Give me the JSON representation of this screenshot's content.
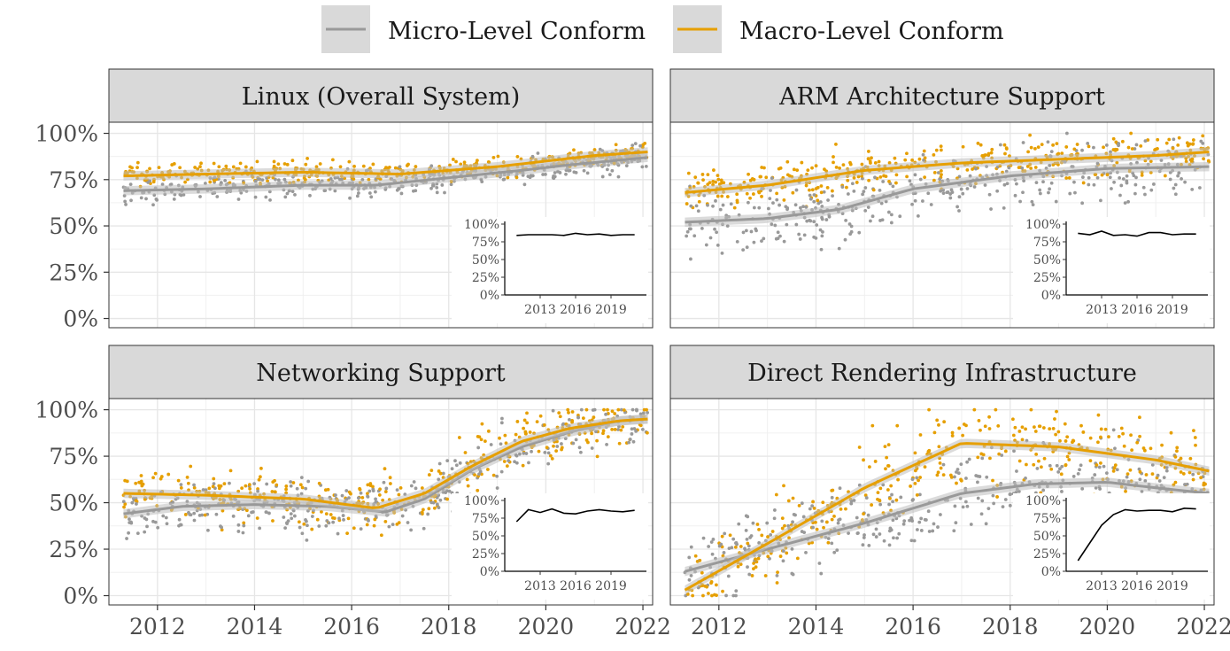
{
  "legend": {
    "position": "top",
    "items": [
      {
        "label": "Micro-Level Conform",
        "color": "#999999"
      },
      {
        "label": "Macro-Level Conform",
        "color": "#E69F00"
      }
    ]
  },
  "chart_data": {
    "type": "scatter",
    "ylim": [
      0,
      100
    ],
    "xlim": [
      2011,
      2022.2
    ],
    "y_ticks": [
      0,
      25,
      50,
      75,
      100
    ],
    "y_tick_labels": [
      "0%",
      "25%",
      "50%",
      "75%",
      "100%"
    ],
    "x_ticks": [
      2012,
      2014,
      2016,
      2018,
      2020,
      2022
    ],
    "x_tick_labels": [
      "2012",
      "2014",
      "2016",
      "2018",
      "2020",
      "2022"
    ],
    "grid": true,
    "inset": {
      "y_tick_labels": [
        "0%",
        "25%",
        "50%",
        "75%",
        "100%"
      ],
      "x_tick_labels": [
        "2013",
        "2016",
        "2019"
      ]
    },
    "panels": [
      {
        "title": "Linux (Overall System)",
        "macro_trend": {
          "x": [
            2011.3,
            2013,
            2015,
            2017,
            2019,
            2020,
            2021,
            2022.1
          ],
          "y": [
            77,
            78,
            79,
            78,
            82,
            85,
            88,
            90
          ]
        },
        "micro_trend": {
          "x": [
            2011.3,
            2013,
            2015,
            2016.5,
            2018,
            2019.5,
            2020.5,
            2022.1
          ],
          "y": [
            69,
            70,
            72,
            72,
            76,
            80,
            83,
            87
          ]
        },
        "micro_spread": 5,
        "macro_spread": 4,
        "inset_line": {
          "x": [
            2011,
            2012,
            2013,
            2014,
            2015,
            2016,
            2017,
            2018,
            2019,
            2020,
            2021
          ],
          "y": [
            84,
            85,
            85,
            85,
            84,
            87,
            85,
            86,
            84,
            85,
            85
          ]
        }
      },
      {
        "title": "ARM Architecture Support",
        "macro_trend": {
          "x": [
            2011.3,
            2013,
            2015,
            2017,
            2019,
            2021,
            2022.1
          ],
          "y": [
            68,
            72,
            80,
            84,
            86,
            88,
            90
          ]
        },
        "micro_trend": {
          "x": [
            2011.3,
            2013,
            2014.5,
            2016,
            2018,
            2020,
            2022.1
          ],
          "y": [
            52,
            54,
            59,
            70,
            77,
            81,
            82
          ]
        },
        "micro_spread": 12,
        "macro_spread": 8,
        "inset_line": {
          "x": [
            2011,
            2012,
            2013,
            2014,
            2015,
            2016,
            2017,
            2018,
            2019,
            2020,
            2021
          ],
          "y": [
            87,
            85,
            90,
            84,
            85,
            83,
            88,
            88,
            85,
            86,
            86
          ]
        }
      },
      {
        "title": "Networking Support",
        "macro_trend": {
          "x": [
            2011.3,
            2013,
            2015,
            2016.5,
            2017.5,
            2018.5,
            2019.5,
            2020.5,
            2021.5,
            2022.1
          ],
          "y": [
            55,
            54,
            52,
            47,
            55,
            70,
            83,
            90,
            94,
            95
          ]
        },
        "micro_trend": {
          "x": [
            2011.3,
            2012.5,
            2014,
            2015.5,
            2016.7,
            2017.5,
            2018.5,
            2019.5,
            2020.5,
            2021.5,
            2022.1
          ],
          "y": [
            44,
            48,
            49,
            48,
            45,
            52,
            68,
            80,
            88,
            94,
            95
          ]
        },
        "micro_spread": 10,
        "macro_spread": 10,
        "inset_line": {
          "x": [
            2011,
            2012,
            2013,
            2014,
            2015,
            2016,
            2017,
            2018,
            2019,
            2020,
            2021
          ],
          "y": [
            70,
            87,
            83,
            88,
            82,
            81,
            85,
            87,
            85,
            84,
            86
          ]
        }
      },
      {
        "title": "Direct Rendering Infrastructure",
        "macro_trend": {
          "x": [
            2011.3,
            2013,
            2015,
            2017,
            2019,
            2021,
            2022.1
          ],
          "y": [
            3,
            28,
            58,
            82,
            80,
            73,
            67
          ]
        },
        "micro_trend": {
          "x": [
            2011.3,
            2013,
            2015,
            2017,
            2018.5,
            2020,
            2021,
            2022.1
          ],
          "y": [
            13,
            25,
            39,
            55,
            60,
            61,
            58,
            55
          ]
        },
        "micro_spread": 15,
        "macro_spread": 15,
        "inset_line": {
          "x": [
            2011,
            2012,
            2013,
            2014,
            2015,
            2016,
            2017,
            2018,
            2019,
            2020,
            2021
          ],
          "y": [
            15,
            40,
            65,
            80,
            87,
            85,
            86,
            86,
            84,
            89,
            88
          ]
        }
      }
    ]
  }
}
